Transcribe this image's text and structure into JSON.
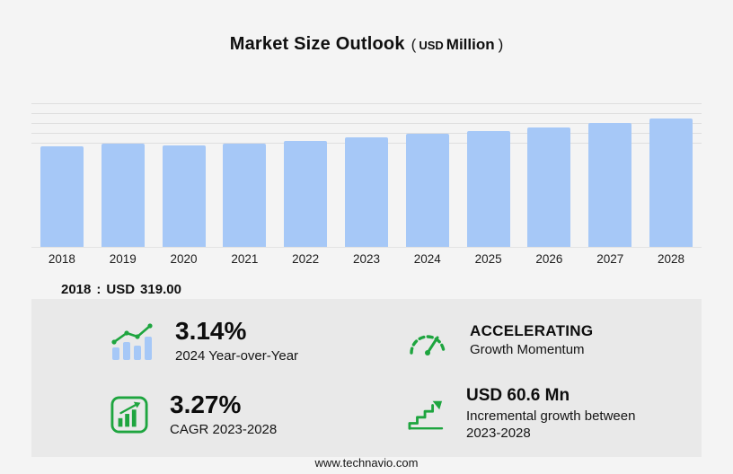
{
  "title": {
    "main": "Market Size Outlook",
    "paren_open": "(",
    "currency": "USD",
    "unit": "Million",
    "paren_close": ")"
  },
  "chart_data": {
    "type": "bar",
    "title": "Market Size Outlook (USD Million)",
    "categories": [
      "2018",
      "2019",
      "2020",
      "2021",
      "2022",
      "2023",
      "2024",
      "2025",
      "2026",
      "2027",
      "2028"
    ],
    "values": [
      319.0,
      326.5,
      322.6,
      327.5,
      336.4,
      347.1,
      358.0,
      368.6,
      379.8,
      393.4,
      407.7
    ],
    "xlabel": "",
    "ylabel": "",
    "ylim": [
      0,
      484
    ],
    "grid": true,
    "legend": "none",
    "bar_color": "#a6c8f7"
  },
  "note": {
    "year": "2018",
    "separator": ":",
    "currency": "USD",
    "value": "319.00"
  },
  "stats": [
    {
      "icon": "yoy-bars-trend-icon",
      "value": "3.14%",
      "label": "2024 Year-over-Year"
    },
    {
      "icon": "speedometer-icon",
      "value": "ACCELERATING",
      "label": "Growth Momentum"
    },
    {
      "icon": "cagr-chart-icon",
      "value": "3.27%",
      "label": "CAGR 2023-2028"
    },
    {
      "icon": "incremental-growth-icon",
      "value": "USD 60.6 Mn",
      "label": "Incremental growth between 2023-2028"
    }
  ],
  "footer": {
    "url": "www.technavio.com"
  },
  "colors": {
    "accent_green": "#1ea53f",
    "bar_blue": "#a6c8f7",
    "panel_gray": "#e9e9e9"
  }
}
